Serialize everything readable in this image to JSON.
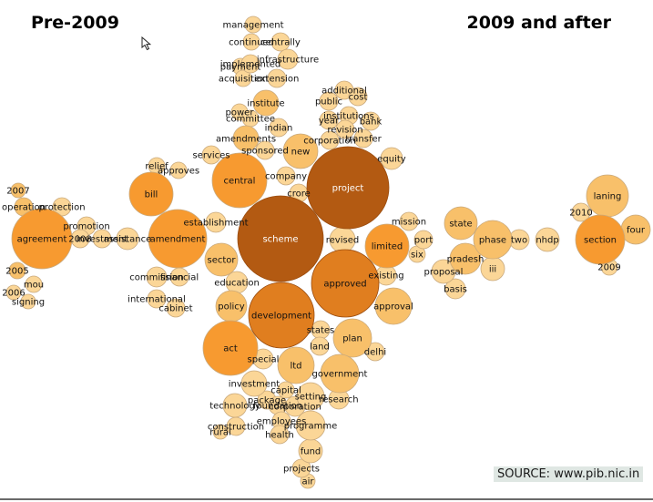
{
  "header": {
    "left_title": "Pre-2009",
    "right_title": "2009 and after"
  },
  "source_label": "SOURCE: www.pib.nic.in",
  "colors": {
    "huge": "#b35a12",
    "large": "#e07e1f",
    "medium": "#f79a30",
    "small": "#f8c06a",
    "tiny": "#fbd697",
    "stroke": "#c9a97c"
  },
  "terms": [
    "agreement",
    "2007",
    "operation",
    "protection",
    "promotion",
    "2008",
    "investment",
    "assistance",
    "2005",
    "mou",
    "2006",
    "signing",
    "bill",
    "relief",
    "approves",
    "amendment",
    "establishment",
    "commission",
    "financial",
    "international",
    "cabinet",
    "management",
    "continued",
    "centrally",
    "implemented",
    "payment",
    "infrastructure",
    "acquisition",
    "extension",
    "institute",
    "power",
    "committee",
    "indian",
    "amendments",
    "sponsored",
    "services",
    "central",
    "company",
    "crore",
    "new",
    "project",
    "additional",
    "public",
    "cost",
    "institutions",
    "year",
    "bank",
    "revision",
    "transfer",
    "corporation",
    "equity",
    "scheme",
    "revised",
    "limited",
    "mission",
    "port",
    "six",
    "existing",
    "approved",
    "approval",
    "sector",
    "education",
    "policy",
    "development",
    "act",
    "special",
    "plan",
    "states",
    "land",
    "delhi",
    "ltd",
    "investment",
    "capital",
    "package",
    "government",
    "setting",
    "research",
    "corporation",
    "technology",
    "foundation",
    "construction",
    "employees",
    "rural",
    "health",
    "programme",
    "fund",
    "projects",
    "air",
    "state",
    "phase",
    "two",
    "nhdp",
    "pradesh",
    "proposal",
    "iii",
    "basis",
    "laning",
    "2010",
    "section",
    "four",
    "2009"
  ]
}
